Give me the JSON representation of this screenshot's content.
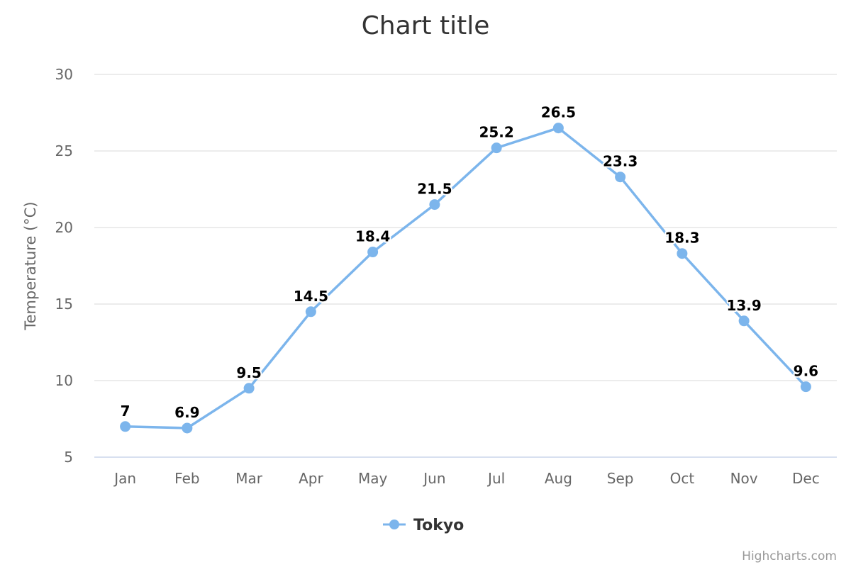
{
  "colors": {
    "series": "#7cb5ec",
    "gridline": "#e6e6e6",
    "axis_line": "#ccd6eb"
  },
  "credits": "Highcharts.com",
  "chart_data": {
    "type": "line",
    "title": "Chart title",
    "xlabel": "",
    "ylabel": "Temperature (°C)",
    "categories": [
      "Jan",
      "Feb",
      "Mar",
      "Apr",
      "May",
      "Jun",
      "Jul",
      "Aug",
      "Sep",
      "Oct",
      "Nov",
      "Dec"
    ],
    "ylim": [
      5,
      30
    ],
    "yticks": [
      5,
      10,
      15,
      20,
      25,
      30
    ],
    "grid": true,
    "legend": "bottom-center",
    "data_labels": true,
    "series": [
      {
        "name": "Tokyo",
        "values": [
          7.0,
          6.9,
          9.5,
          14.5,
          18.4,
          21.5,
          25.2,
          26.5,
          23.3,
          18.3,
          13.9,
          9.6
        ],
        "labels": [
          "7",
          "6.9",
          "9.5",
          "14.5",
          "18.4",
          "21.5",
          "25.2",
          "26.5",
          "23.3",
          "18.3",
          "13.9",
          "9.6"
        ]
      }
    ]
  }
}
